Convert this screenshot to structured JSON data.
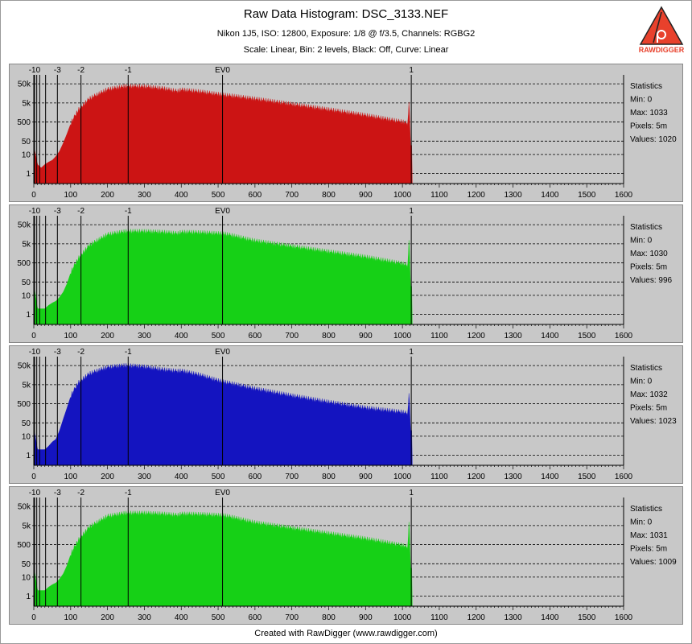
{
  "header": {
    "title": "Raw Data Histogram: DSC_3133.NEF",
    "subtitle1": "Nikon 1J5, ISO: 12800, Exposure: 1/8 @ f/3.5, Channels: RGBG2",
    "subtitle2": "Scale: Linear, Bin: 2 levels, Black: Off, Curve: Linear"
  },
  "logo": {
    "icon": "rawdigger-logo-icon",
    "text": "RAWDIGGER",
    "accent": "#e8412c"
  },
  "footer": "Created with RawDigger (www.rawdigger.com)",
  "colors": {
    "panel_bg": "#c8c8c8",
    "red": "#cc1414",
    "green": "#16d016",
    "blue": "#1414c0"
  },
  "chart_data": [
    {
      "type": "area",
      "channel": "R",
      "color": "#cc1414",
      "xlim": [
        0,
        1600
      ],
      "x_ticks": [
        0,
        100,
        200,
        300,
        400,
        500,
        600,
        700,
        800,
        900,
        1000,
        1100,
        1200,
        1300,
        1400,
        1500,
        1600
      ],
      "y_scale": "log",
      "y_ticks": [
        "1",
        "10",
        "50",
        "500",
        "5k",
        "50k"
      ],
      "ev_markers": [
        {
          "label": "-10",
          "x": 2
        },
        {
          "label": "-3",
          "x": 64
        },
        {
          "label": "-2",
          "x": 128
        },
        {
          "label": "-1",
          "x": 256
        },
        {
          "label": "EV0",
          "x": 512
        },
        {
          "label": "1",
          "x": 1024
        }
      ],
      "envelope": [
        [
          0,
          30
        ],
        [
          10,
          3
        ],
        [
          20,
          2
        ],
        [
          30,
          3
        ],
        [
          40,
          4
        ],
        [
          50,
          5
        ],
        [
          60,
          8
        ],
        [
          70,
          15
        ],
        [
          80,
          40
        ],
        [
          90,
          120
        ],
        [
          100,
          400
        ],
        [
          120,
          2000
        ],
        [
          150,
          8000
        ],
        [
          200,
          25000
        ],
        [
          250,
          37000
        ],
        [
          300,
          35000
        ],
        [
          350,
          28000
        ],
        [
          390,
          20000
        ],
        [
          400,
          24000
        ],
        [
          450,
          19000
        ],
        [
          500,
          14000
        ],
        [
          600,
          8000
        ],
        [
          700,
          4200
        ],
        [
          800,
          2200
        ],
        [
          900,
          1100
        ],
        [
          1000,
          500
        ],
        [
          1015,
          400
        ],
        [
          1018,
          8000
        ],
        [
          1022,
          30
        ],
        [
          1030,
          0
        ]
      ],
      "statistics": {
        "title": "Statistics",
        "min": "Min: 0",
        "max": "Max: 1033",
        "pixels": "Pixels: 5m",
        "values": "Values: 1020"
      }
    },
    {
      "type": "area",
      "channel": "G",
      "color": "#16d016",
      "xlim": [
        0,
        1600
      ],
      "x_ticks": [
        0,
        100,
        200,
        300,
        400,
        500,
        600,
        700,
        800,
        900,
        1000,
        1100,
        1200,
        1300,
        1400,
        1500,
        1600
      ],
      "y_scale": "log",
      "y_ticks": [
        "1",
        "10",
        "50",
        "500",
        "5k",
        "50k"
      ],
      "ev_markers": [
        {
          "label": "-10",
          "x": 2
        },
        {
          "label": "-3",
          "x": 64
        },
        {
          "label": "-2",
          "x": 128
        },
        {
          "label": "-1",
          "x": 256
        },
        {
          "label": "EV0",
          "x": 512
        },
        {
          "label": "1",
          "x": 1024
        }
      ],
      "envelope": [
        [
          0,
          40
        ],
        [
          10,
          2
        ],
        [
          20,
          2
        ],
        [
          30,
          2
        ],
        [
          40,
          3
        ],
        [
          50,
          4
        ],
        [
          60,
          5
        ],
        [
          70,
          8
        ],
        [
          80,
          15
        ],
        [
          90,
          40
        ],
        [
          100,
          150
        ],
        [
          120,
          800
        ],
        [
          150,
          4000
        ],
        [
          200,
          15000
        ],
        [
          250,
          22000
        ],
        [
          300,
          22000
        ],
        [
          350,
          20000
        ],
        [
          390,
          17000
        ],
        [
          400,
          20000
        ],
        [
          450,
          19000
        ],
        [
          500,
          17000
        ],
        [
          520,
          16000
        ],
        [
          600,
          7000
        ],
        [
          700,
          3600
        ],
        [
          800,
          1900
        ],
        [
          900,
          1000
        ],
        [
          1000,
          450
        ],
        [
          1015,
          350
        ],
        [
          1018,
          12000
        ],
        [
          1022,
          30
        ],
        [
          1030,
          0
        ]
      ],
      "statistics": {
        "title": "Statistics",
        "min": "Min: 0",
        "max": "Max: 1030",
        "pixels": "Pixels: 5m",
        "values": "Values: 996"
      }
    },
    {
      "type": "area",
      "channel": "B",
      "color": "#1414c0",
      "xlim": [
        0,
        1600
      ],
      "x_ticks": [
        0,
        100,
        200,
        300,
        400,
        500,
        600,
        700,
        800,
        900,
        1000,
        1100,
        1200,
        1300,
        1400,
        1500,
        1600
      ],
      "y_scale": "log",
      "y_ticks": [
        "1",
        "10",
        "50",
        "500",
        "5k",
        "50k"
      ],
      "ev_markers": [
        {
          "label": "-10",
          "x": 2
        },
        {
          "label": "-3",
          "x": 64
        },
        {
          "label": "-2",
          "x": 128
        },
        {
          "label": "-1",
          "x": 256
        },
        {
          "label": "EV0",
          "x": 512
        },
        {
          "label": "1",
          "x": 1024
        }
      ],
      "envelope": [
        [
          0,
          30
        ],
        [
          10,
          2
        ],
        [
          20,
          2
        ],
        [
          30,
          2
        ],
        [
          40,
          3
        ],
        [
          50,
          5
        ],
        [
          60,
          7
        ],
        [
          70,
          20
        ],
        [
          80,
          80
        ],
        [
          90,
          300
        ],
        [
          100,
          1200
        ],
        [
          120,
          6000
        ],
        [
          150,
          18000
        ],
        [
          200,
          40000
        ],
        [
          250,
          50000
        ],
        [
          300,
          42000
        ],
        [
          350,
          30000
        ],
        [
          390,
          25000
        ],
        [
          400,
          26000
        ],
        [
          450,
          16000
        ],
        [
          500,
          8000
        ],
        [
          600,
          3000
        ],
        [
          700,
          1300
        ],
        [
          800,
          600
        ],
        [
          900,
          300
        ],
        [
          1000,
          180
        ],
        [
          1015,
          150
        ],
        [
          1018,
          2500
        ],
        [
          1022,
          20
        ],
        [
          1030,
          0
        ]
      ],
      "statistics": {
        "title": "Statistics",
        "min": "Min: 0",
        "max": "Max: 1032",
        "pixels": "Pixels: 5m",
        "values": "Values: 1023"
      }
    },
    {
      "type": "area",
      "channel": "G2",
      "color": "#16d016",
      "xlim": [
        0,
        1600
      ],
      "x_ticks": [
        0,
        100,
        200,
        300,
        400,
        500,
        600,
        700,
        800,
        900,
        1000,
        1100,
        1200,
        1300,
        1400,
        1500,
        1600
      ],
      "y_scale": "log",
      "y_ticks": [
        "1",
        "10",
        "50",
        "500",
        "5k",
        "50k"
      ],
      "ev_markers": [
        {
          "label": "-10",
          "x": 2
        },
        {
          "label": "-3",
          "x": 64
        },
        {
          "label": "-2",
          "x": 128
        },
        {
          "label": "-1",
          "x": 256
        },
        {
          "label": "EV0",
          "x": 512
        },
        {
          "label": "1",
          "x": 1024
        }
      ],
      "envelope": [
        [
          0,
          40
        ],
        [
          10,
          2
        ],
        [
          20,
          2
        ],
        [
          30,
          2
        ],
        [
          40,
          3
        ],
        [
          50,
          4
        ],
        [
          60,
          5
        ],
        [
          70,
          8
        ],
        [
          80,
          15
        ],
        [
          90,
          40
        ],
        [
          100,
          150
        ],
        [
          120,
          800
        ],
        [
          150,
          4000
        ],
        [
          200,
          15000
        ],
        [
          250,
          22000
        ],
        [
          300,
          22000
        ],
        [
          350,
          20000
        ],
        [
          390,
          17000
        ],
        [
          400,
          20000
        ],
        [
          450,
          19000
        ],
        [
          500,
          17000
        ],
        [
          520,
          16000
        ],
        [
          600,
          7000
        ],
        [
          700,
          3600
        ],
        [
          800,
          1900
        ],
        [
          900,
          1000
        ],
        [
          1000,
          450
        ],
        [
          1015,
          350
        ],
        [
          1018,
          12000
        ],
        [
          1022,
          30
        ],
        [
          1030,
          0
        ]
      ],
      "statistics": {
        "title": "Statistics",
        "min": "Min: 0",
        "max": "Max: 1031",
        "pixels": "Pixels: 5m",
        "values": "Values: 1009"
      }
    }
  ]
}
